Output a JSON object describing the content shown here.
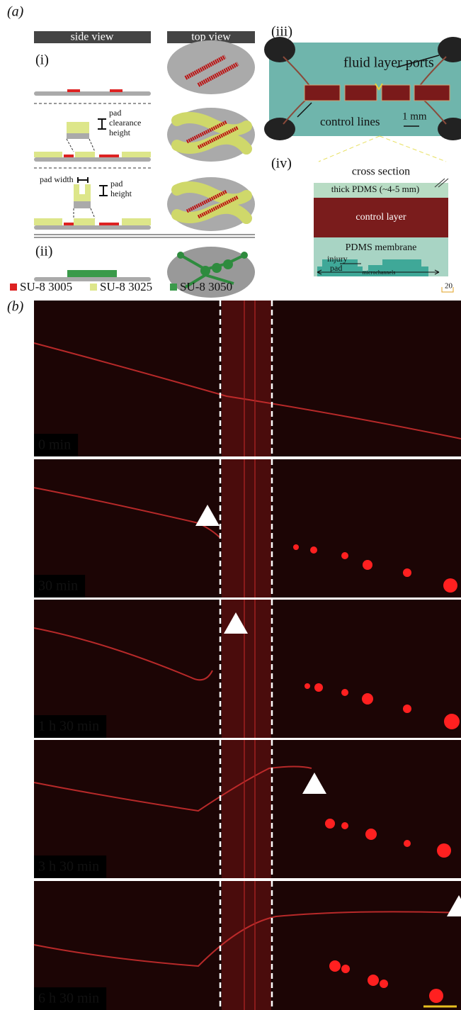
{
  "panel_a": {
    "label": "(a)",
    "side_view": "side view",
    "top_view": "top view",
    "sublabels": [
      "(i)",
      "(ii)",
      "(iii)",
      "(iv)"
    ],
    "pad_clearance_height": [
      "pad",
      "clearance",
      "height"
    ],
    "pad_width": "pad width",
    "pad_height": [
      "pad",
      "height"
    ],
    "legend": [
      "SU-8 3005",
      "SU-8 3025",
      "SU-8 3050"
    ],
    "photo": {
      "fluid_layer_ports": "fluid layer ports",
      "control_lines": "control lines",
      "scale": "1 mm"
    },
    "cross_section": {
      "title": "cross section",
      "thick_pdms": "thick PDMS (~4-5 mm)",
      "control_layer": "control layer",
      "pdms_membrane": "PDMS membrane",
      "injury_pad": [
        "injury",
        "pad"
      ],
      "microchannels": "microchannels",
      "scale": "20"
    }
  },
  "panel_b": {
    "label": "(b)",
    "timepoints": [
      "0 min",
      "30 min",
      "1 h 30 min",
      "3 h 30 min",
      "6 h 30 min"
    ]
  }
}
